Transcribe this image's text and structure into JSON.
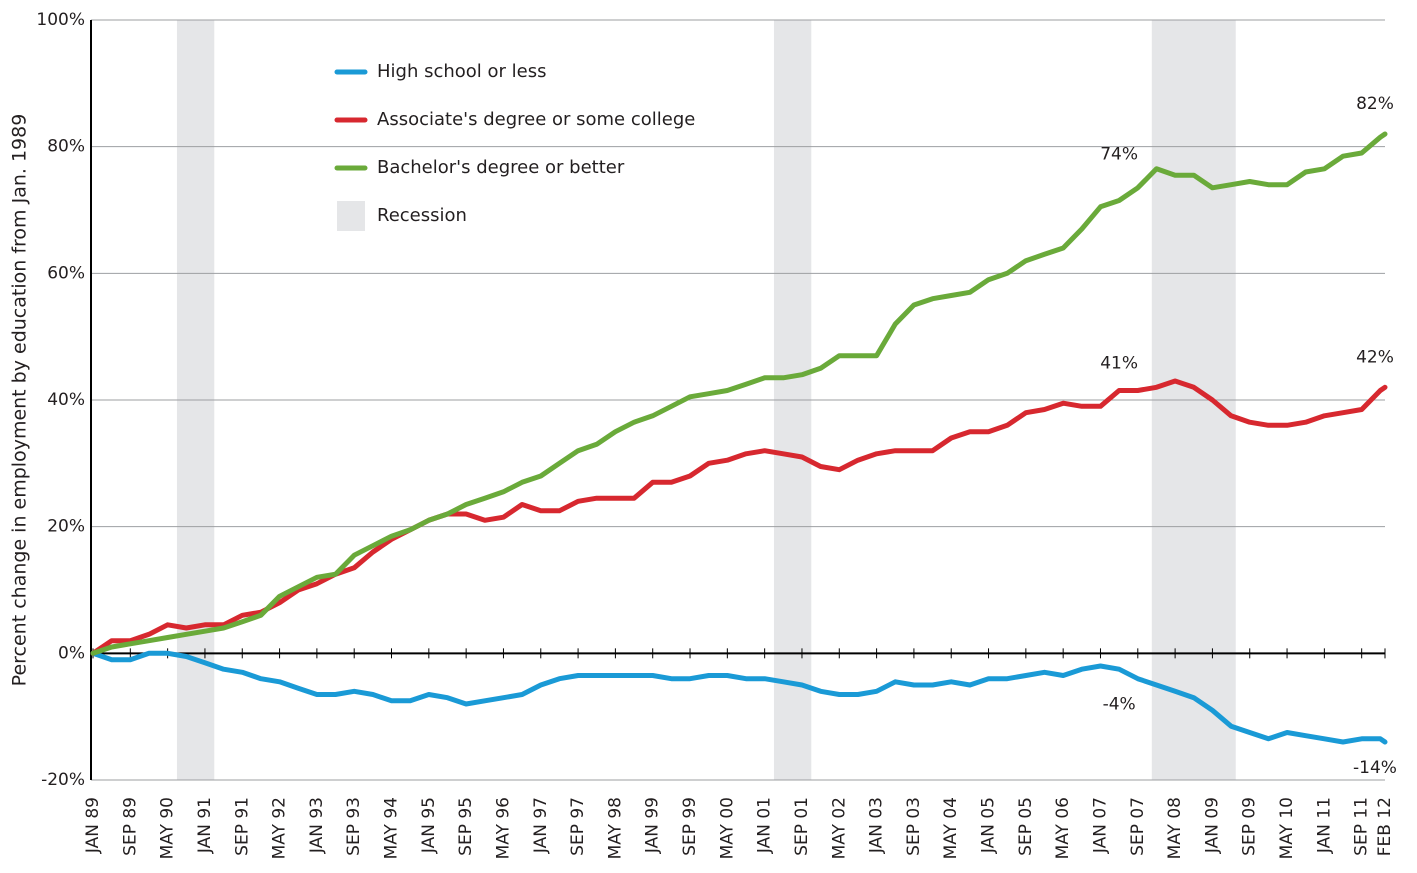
{
  "chart_data": {
    "type": "line",
    "ylabel": "Percent change in employment by education from Jan. 1989",
    "x": [
      0,
      4,
      8,
      12,
      16,
      20,
      24,
      28,
      32,
      36,
      40,
      44,
      48,
      52,
      56,
      60,
      64,
      68,
      72,
      76,
      80,
      84,
      88,
      92,
      96,
      100,
      104,
      108,
      112,
      116,
      120,
      124,
      128,
      132,
      136,
      140,
      144,
      148,
      152,
      156,
      160,
      164,
      168,
      172,
      176,
      180,
      184,
      188,
      192,
      196,
      200,
      204,
      208,
      212,
      216,
      220,
      224,
      228,
      232,
      236,
      240,
      244,
      248,
      252,
      256,
      260,
      264,
      268,
      272,
      276,
      277
    ],
    "xlim": [
      0,
      277
    ],
    "xticks": [
      {
        "value": 0,
        "label": "JAN 89"
      },
      {
        "value": 8,
        "label": "SEP 89"
      },
      {
        "value": 16,
        "label": "MAY 90"
      },
      {
        "value": 24,
        "label": "JAN 91"
      },
      {
        "value": 32,
        "label": "SEP 91"
      },
      {
        "value": 40,
        "label": "MAY 92"
      },
      {
        "value": 48,
        "label": "JAN 93"
      },
      {
        "value": 56,
        "label": "SEP 93"
      },
      {
        "value": 64,
        "label": "MAY 94"
      },
      {
        "value": 72,
        "label": "JAN 95"
      },
      {
        "value": 80,
        "label": "SEP 95"
      },
      {
        "value": 88,
        "label": "MAY 96"
      },
      {
        "value": 96,
        "label": "JAN 97"
      },
      {
        "value": 104,
        "label": "SEP 97"
      },
      {
        "value": 112,
        "label": "MAY 98"
      },
      {
        "value": 120,
        "label": "JAN 99"
      },
      {
        "value": 128,
        "label": "SEP 99"
      },
      {
        "value": 136,
        "label": "MAY 00"
      },
      {
        "value": 144,
        "label": "JAN 01"
      },
      {
        "value": 152,
        "label": "SEP 01"
      },
      {
        "value": 160,
        "label": "MAY 02"
      },
      {
        "value": 168,
        "label": "JAN 03"
      },
      {
        "value": 176,
        "label": "SEP 03"
      },
      {
        "value": 184,
        "label": "MAY 04"
      },
      {
        "value": 192,
        "label": "JAN 05"
      },
      {
        "value": 200,
        "label": "SEP 05"
      },
      {
        "value": 208,
        "label": "MAY 06"
      },
      {
        "value": 216,
        "label": "JAN 07"
      },
      {
        "value": 224,
        "label": "SEP 07"
      },
      {
        "value": 232,
        "label": "MAY 08"
      },
      {
        "value": 240,
        "label": "JAN 09"
      },
      {
        "value": 248,
        "label": "SEP 09"
      },
      {
        "value": 256,
        "label": "MAY 10"
      },
      {
        "value": 264,
        "label": "JAN 11"
      },
      {
        "value": 272,
        "label": "SEP 11"
      },
      {
        "value": 277,
        "label": "FEB 12"
      }
    ],
    "ylim": [
      -20,
      100
    ],
    "yticks": [
      {
        "value": -20,
        "label": "-20%"
      },
      {
        "value": 0,
        "label": "0%"
      },
      {
        "value": 20,
        "label": "20%"
      },
      {
        "value": 40,
        "label": "40%"
      },
      {
        "value": 60,
        "label": "60%"
      },
      {
        "value": 80,
        "label": "80%"
      },
      {
        "value": 100,
        "label": "100%"
      }
    ],
    "grid": true,
    "series": [
      {
        "name": "High school or less",
        "color": "#1a9ad6",
        "values": [
          0,
          -1,
          -1,
          0,
          0,
          -0.5,
          -1.5,
          -2.5,
          -3,
          -4,
          -4.5,
          -5.5,
          -6.5,
          -6.5,
          -6,
          -6.5,
          -7.5,
          -7.5,
          -6.5,
          -7,
          -8,
          -7.5,
          -7,
          -6.5,
          -5,
          -4,
          -3.5,
          -3.5,
          -3.5,
          -3.5,
          -3.5,
          -4,
          -4,
          -3.5,
          -3.5,
          -4,
          -4,
          -4.5,
          -5,
          -6,
          -6.5,
          -6.5,
          -6,
          -4.5,
          -5,
          -5,
          -4.5,
          -5,
          -4,
          -4,
          -3.5,
          -3,
          -3.5,
          -2.5,
          -2,
          -2.5,
          -4,
          -5,
          -6,
          -7,
          -9,
          -11.5,
          -12.5,
          -13.5,
          -12.5,
          -13,
          -13.5,
          -14,
          -13.5,
          -13.5,
          -14
        ]
      },
      {
        "name": "Associate's degree or some college",
        "color": "#d7282f",
        "values": [
          0,
          2,
          2,
          3,
          4.5,
          4,
          4.5,
          4.5,
          6,
          6.5,
          8,
          10,
          11,
          12.5,
          13.5,
          16,
          18,
          19.5,
          21,
          22,
          22,
          21,
          21.5,
          23.5,
          22.5,
          22.5,
          24,
          24.5,
          24.5,
          24.5,
          27,
          27,
          28,
          30,
          30.5,
          31.5,
          32,
          31.5,
          31,
          29.5,
          29,
          30.5,
          31.5,
          32,
          32,
          32,
          34,
          35,
          35,
          36,
          38,
          38.5,
          39.5,
          39,
          39,
          41.5,
          41.5,
          42,
          43,
          42,
          40,
          37.5,
          36.5,
          36,
          36,
          36.5,
          37.5,
          38,
          38.5,
          41.5,
          42
        ]
      },
      {
        "name": "Bachelor's degree or better",
        "color": "#6aaa3a",
        "values": [
          0,
          1,
          1.5,
          2,
          2.5,
          3,
          3.5,
          4,
          5,
          6,
          9,
          10.5,
          12,
          12.5,
          15.5,
          17,
          18.5,
          19.5,
          21,
          22,
          23.5,
          24.5,
          25.5,
          27,
          28,
          30,
          32,
          33,
          35,
          36.5,
          37.5,
          39,
          40.5,
          41,
          41.5,
          42.5,
          43.5,
          43.5,
          44,
          45,
          47,
          47,
          47,
          52,
          55,
          56,
          56.5,
          57,
          59,
          60,
          62,
          63,
          64,
          67,
          70.5,
          71.5,
          73.5,
          76.5,
          75.5,
          75.5,
          73.5,
          74,
          74.5,
          74,
          74,
          76,
          76.5,
          78.5,
          79,
          81.5,
          82
        ]
      }
    ],
    "recession": {
      "name": "Recession",
      "color": "#e5e6e8",
      "ranges": [
        {
          "start": 18,
          "end": 26
        },
        {
          "start": 146,
          "end": 154
        },
        {
          "start": 227,
          "end": 245
        }
      ]
    },
    "annotations": [
      {
        "x": 220,
        "y": 74,
        "text": "74%"
      },
      {
        "x": 220,
        "y": 41,
        "text": "41%"
      },
      {
        "x": 220,
        "y": -4,
        "text": "-4%"
      },
      {
        "x": 277,
        "y": 82,
        "text": "82%"
      },
      {
        "x": 277,
        "y": 42,
        "text": "42%"
      },
      {
        "x": 277,
        "y": -14,
        "text": "-14%"
      }
    ]
  }
}
